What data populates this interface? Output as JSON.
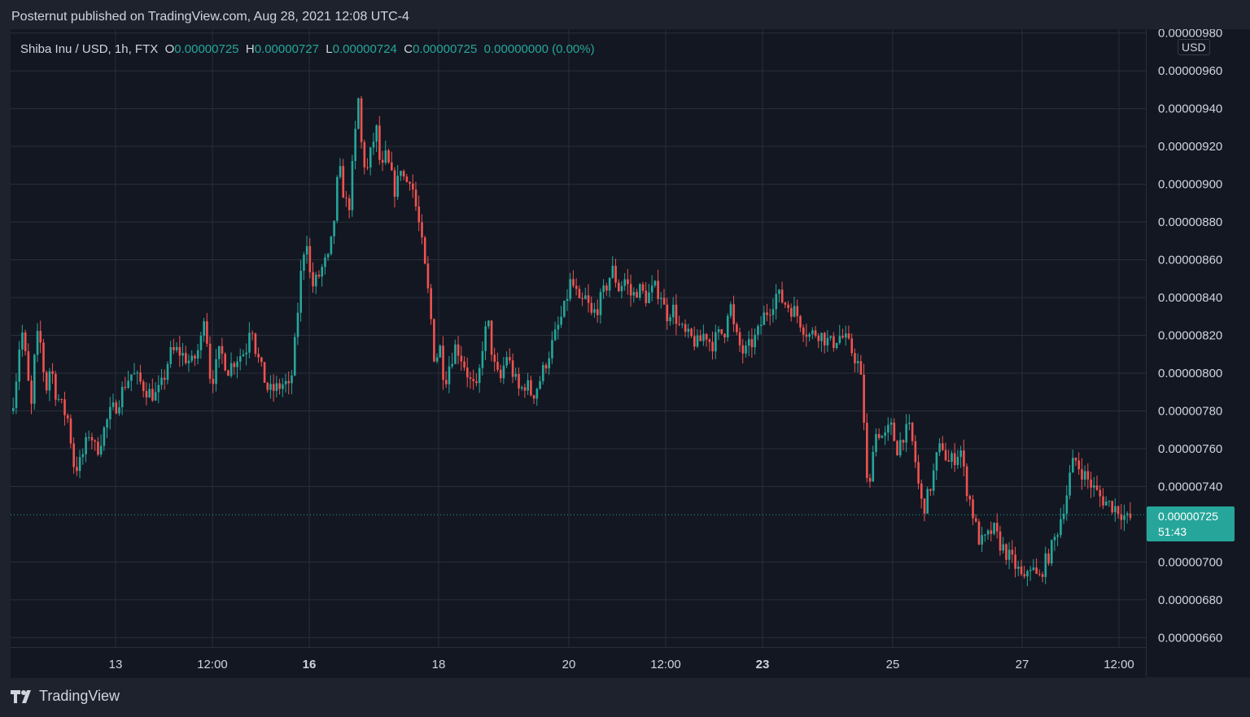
{
  "caption": "Posternut published on TradingView.com, Aug 28, 2021 12:08 UTC-4",
  "legend": {
    "symbol": "Shiba Inu / USD, 1h, FTX",
    "o_label": "O",
    "o_value": "0.00000725",
    "h_label": "H",
    "h_value": "0.00000727",
    "l_label": "L",
    "l_value": "0.00000724",
    "c_label": "C",
    "c_value": "0.00000725",
    "change": "0.00000000 (0.00%)"
  },
  "currency_badge": "USD",
  "last_price": {
    "value": "0.00000725",
    "countdown": "51:43"
  },
  "brand": "TradingView",
  "colors": {
    "up": "#26a69a",
    "down": "#ef5350",
    "background": "#131722",
    "grid": "#2a2e39",
    "text": "#d1d4dc"
  },
  "icons": {
    "brand": "tradingview-logo-icon"
  },
  "chart_data": {
    "type": "candlestick",
    "ylim": [
      6.55e-06,
      9.82e-06
    ],
    "yticks": [
      "0.00000980",
      "0.00000960",
      "0.00000940",
      "0.00000920",
      "0.00000900",
      "0.00000880",
      "0.00000860",
      "0.00000840",
      "0.00000820",
      "0.00000800",
      "0.00000780",
      "0.00000760",
      "0.00000740",
      "0.00000725",
      "0.00000700",
      "0.00000680",
      "0.00000660"
    ],
    "x_axis": [
      "13",
      "12:00",
      "16",
      "18",
      "20",
      "12:00",
      "23",
      "25",
      "27",
      "12:00"
    ],
    "series_path": [
      [
        0,
        7.8
      ],
      [
        5,
        7.95
      ],
      [
        12,
        8.25
      ],
      [
        18,
        8.05
      ],
      [
        24,
        7.8
      ],
      [
        30,
        8.2
      ],
      [
        36,
        8.15
      ],
      [
        42,
        7.9
      ],
      [
        48,
        8.05
      ],
      [
        54,
        7.9
      ],
      [
        62,
        7.82
      ],
      [
        70,
        7.75
      ],
      [
        76,
        7.52
      ],
      [
        82,
        7.5
      ],
      [
        90,
        7.6
      ],
      [
        96,
        7.7
      ],
      [
        104,
        7.58
      ],
      [
        112,
        7.68
      ],
      [
        120,
        7.78
      ],
      [
        130,
        7.84
      ],
      [
        140,
        7.95
      ],
      [
        148,
        8.0
      ],
      [
        158,
        7.95
      ],
      [
        168,
        7.9
      ],
      [
        178,
        7.88
      ],
      [
        186,
        7.95
      ],
      [
        194,
        8.1
      ],
      [
        204,
        8.12
      ],
      [
        214,
        8.08
      ],
      [
        222,
        8.05
      ],
      [
        232,
        8.15
      ],
      [
        238,
        8.38
      ],
      [
        242,
        8.0
      ],
      [
        248,
        7.98
      ],
      [
        256,
        8.12
      ],
      [
        266,
        8.02
      ],
      [
        276,
        8.08
      ],
      [
        288,
        8.12
      ],
      [
        294,
        8.3
      ],
      [
        300,
        8.12
      ],
      [
        308,
        8.0
      ],
      [
        316,
        7.9
      ],
      [
        326,
        7.92
      ],
      [
        336,
        7.95
      ],
      [
        342,
        7.9
      ],
      [
        348,
        8.15
      ],
      [
        356,
        8.55
      ],
      [
        362,
        8.75
      ],
      [
        368,
        8.45
      ],
      [
        376,
        8.5
      ],
      [
        384,
        8.58
      ],
      [
        390,
        8.6
      ],
      [
        396,
        8.8
      ],
      [
        402,
        9.1
      ],
      [
        408,
        8.95
      ],
      [
        414,
        8.85
      ],
      [
        420,
        9.15
      ],
      [
        426,
        9.45
      ],
      [
        430,
        9.2
      ],
      [
        436,
        9.05
      ],
      [
        442,
        9.18
      ],
      [
        448,
        9.3
      ],
      [
        454,
        9.05
      ],
      [
        460,
        9.15
      ],
      [
        466,
        9.05
      ],
      [
        472,
        8.95
      ],
      [
        478,
        9.1
      ],
      [
        484,
        9.0
      ],
      [
        490,
        9.05
      ],
      [
        496,
        8.9
      ],
      [
        502,
        8.75
      ],
      [
        508,
        8.55
      ],
      [
        514,
        8.35
      ],
      [
        520,
        8.05
      ],
      [
        526,
        8.15
      ],
      [
        532,
        7.95
      ],
      [
        538,
        8.05
      ],
      [
        546,
        8.15
      ],
      [
        556,
        8.05
      ],
      [
        564,
        7.95
      ],
      [
        572,
        7.9
      ],
      [
        580,
        8.2
      ],
      [
        586,
        8.25
      ],
      [
        592,
        8.05
      ],
      [
        600,
        7.95
      ],
      [
        608,
        8.1
      ],
      [
        616,
        8.0
      ],
      [
        624,
        7.9
      ],
      [
        632,
        7.95
      ],
      [
        640,
        7.88
      ],
      [
        648,
        7.95
      ],
      [
        656,
        8.05
      ],
      [
        664,
        8.15
      ],
      [
        672,
        8.25
      ],
      [
        680,
        8.35
      ],
      [
        686,
        8.48
      ],
      [
        692,
        8.45
      ],
      [
        698,
        8.35
      ],
      [
        706,
        8.4
      ],
      [
        712,
        8.3
      ],
      [
        720,
        8.35
      ],
      [
        730,
        8.45
      ],
      [
        738,
        8.55
      ],
      [
        746,
        8.45
      ],
      [
        754,
        8.5
      ],
      [
        762,
        8.4
      ],
      [
        770,
        8.45
      ],
      [
        780,
        8.4
      ],
      [
        790,
        8.45
      ],
      [
        798,
        8.42
      ],
      [
        804,
        8.3
      ],
      [
        812,
        8.35
      ],
      [
        820,
        8.25
      ],
      [
        828,
        8.2
      ],
      [
        836,
        8.18
      ],
      [
        844,
        8.15
      ],
      [
        852,
        8.22
      ],
      [
        860,
        8.15
      ],
      [
        868,
        8.2
      ],
      [
        876,
        8.22
      ],
      [
        882,
        8.4
      ],
      [
        888,
        8.22
      ],
      [
        894,
        8.15
      ],
      [
        900,
        8.1
      ],
      [
        908,
        8.15
      ],
      [
        916,
        8.2
      ],
      [
        924,
        8.3
      ],
      [
        932,
        8.35
      ],
      [
        940,
        8.42
      ],
      [
        948,
        8.38
      ],
      [
        956,
        8.35
      ],
      [
        964,
        8.32
      ],
      [
        972,
        8.25
      ],
      [
        980,
        8.2
      ],
      [
        990,
        8.22
      ],
      [
        1000,
        8.18
      ],
      [
        1008,
        8.15
      ],
      [
        1016,
        8.2
      ],
      [
        1024,
        8.18
      ],
      [
        1032,
        8.12
      ],
      [
        1040,
        8.05
      ],
      [
        1046,
        7.9
      ],
      [
        1050,
        7.45
      ],
      [
        1054,
        7.35
      ],
      [
        1058,
        7.62
      ],
      [
        1064,
        7.7
      ],
      [
        1072,
        7.65
      ],
      [
        1080,
        7.72
      ],
      [
        1088,
        7.6
      ],
      [
        1096,
        7.68
      ],
      [
        1104,
        7.7
      ],
      [
        1110,
        7.55
      ],
      [
        1116,
        7.35
      ],
      [
        1120,
        7.28
      ],
      [
        1126,
        7.35
      ],
      [
        1132,
        7.45
      ],
      [
        1138,
        7.58
      ],
      [
        1144,
        7.62
      ],
      [
        1150,
        7.52
      ],
      [
        1158,
        7.55
      ],
      [
        1166,
        7.6
      ],
      [
        1172,
        7.42
      ],
      [
        1178,
        7.32
      ],
      [
        1184,
        7.2
      ],
      [
        1190,
        7.1
      ],
      [
        1198,
        7.12
      ],
      [
        1206,
        7.18
      ],
      [
        1214,
        7.1
      ],
      [
        1222,
        7.05
      ],
      [
        1230,
        7.0
      ],
      [
        1238,
        6.95
      ],
      [
        1244,
        6.88
      ],
      [
        1250,
        7.0
      ],
      [
        1256,
        6.95
      ],
      [
        1262,
        6.9
      ],
      [
        1268,
        6.98
      ],
      [
        1276,
        7.05
      ],
      [
        1284,
        7.15
      ],
      [
        1290,
        7.25
      ],
      [
        1296,
        7.35
      ],
      [
        1300,
        7.45
      ],
      [
        1306,
        7.55
      ],
      [
        1312,
        7.5
      ],
      [
        1320,
        7.45
      ],
      [
        1328,
        7.4
      ],
      [
        1336,
        7.35
      ],
      [
        1344,
        7.32
      ],
      [
        1352,
        7.3
      ],
      [
        1360,
        7.28
      ],
      [
        1366,
        7.25
      ],
      [
        1372,
        7.22
      ],
      [
        1378,
        7.25
      ]
    ]
  }
}
